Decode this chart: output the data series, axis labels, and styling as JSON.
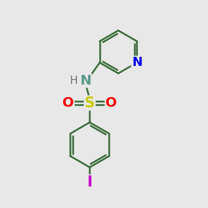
{
  "bg_color": "#e8e8e8",
  "bond_color": "#3a6b3a",
  "bond_width": 1.8,
  "N_color": "#0000ee",
  "NH_N_color": "#5a9a8a",
  "H_color": "#707070",
  "S_color": "#cccc00",
  "O_color": "#ff0000",
  "I_color": "#cc00cc",
  "figsize": [
    3.0,
    3.0
  ],
  "dpi": 100,
  "xlim": [
    0,
    10
  ],
  "ylim": [
    0,
    10
  ]
}
